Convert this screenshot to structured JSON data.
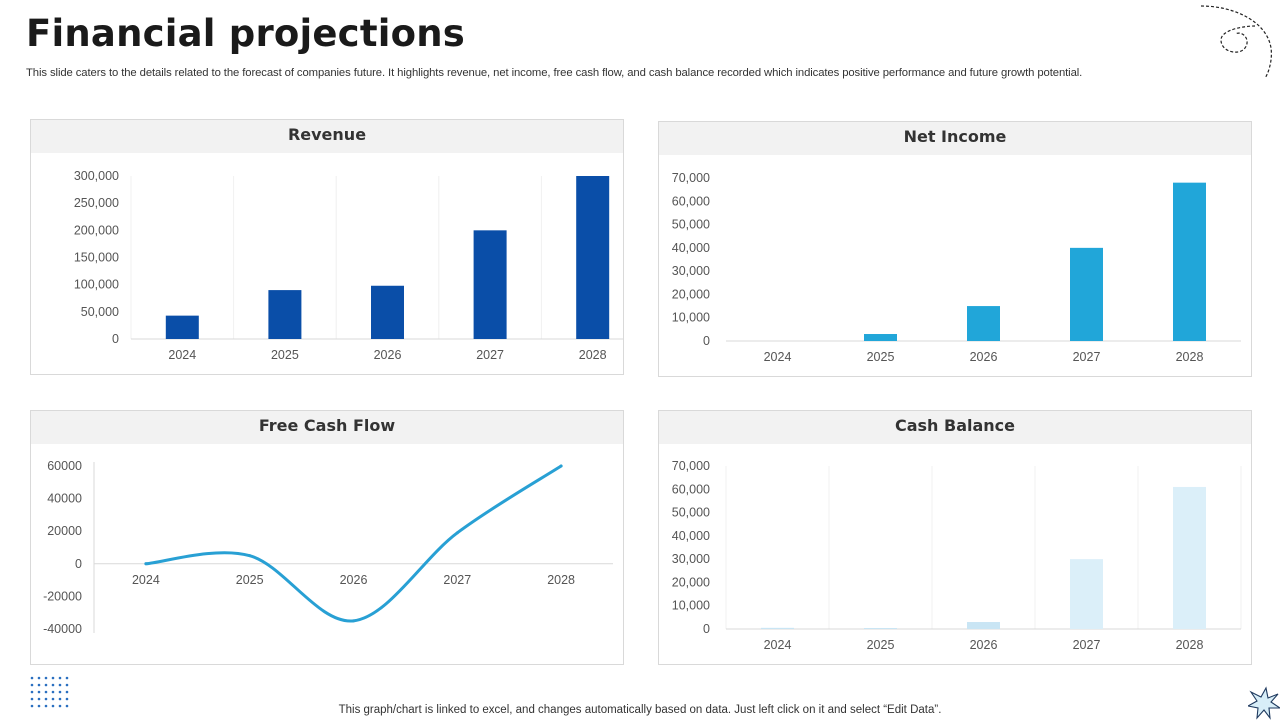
{
  "page": {
    "title": "Financial projections",
    "subtitle": "This slide caters to the details related to the forecast of companies future. It highlights revenue, net income, free cash flow,  and cash balance recorded which indicates positive performance and future growth potential.",
    "footer": "This graph/chart is linked to excel,  and changes automatically based on data. Just left click on it and select “Edit Data”."
  },
  "colors": {
    "revenue_bar": "#0a4ea8",
    "net_income_bar": "#21a6d9",
    "fcf_line": "#28a0d4",
    "cash_balance_bar": "#dbeff9",
    "cash_balance_small_bar": "#c9e5f4"
  },
  "chart_data": [
    {
      "id": "revenue",
      "type": "bar",
      "title": "Revenue",
      "categories": [
        "2024",
        "2025",
        "2026",
        "2027",
        "2028"
      ],
      "values": [
        43000,
        90000,
        98000,
        200000,
        300000
      ],
      "ylim": [
        0,
        300000
      ],
      "yticks": [
        0,
        50000,
        100000,
        150000,
        200000,
        250000,
        300000
      ],
      "ytick_labels": [
        "0",
        "50,000",
        "100,000",
        "150,000",
        "200,000",
        "250,000",
        "300,000"
      ],
      "grid": "vertical"
    },
    {
      "id": "net_income",
      "type": "bar",
      "title": "Net Income",
      "categories": [
        "2024",
        "2025",
        "2026",
        "2027",
        "2028"
      ],
      "values": [
        0,
        3000,
        15000,
        40000,
        68000
      ],
      "ylim": [
        0,
        70000
      ],
      "yticks": [
        0,
        10000,
        20000,
        30000,
        40000,
        50000,
        60000,
        70000
      ],
      "ytick_labels": [
        "0",
        "10,000",
        "20,000",
        "30,000",
        "40,000",
        "50,000",
        "60,000",
        "70,000"
      ],
      "grid": "none"
    },
    {
      "id": "free_cash_flow",
      "type": "line",
      "title": "Free Cash Flow",
      "categories": [
        "2024",
        "2025",
        "2026",
        "2027",
        "2028"
      ],
      "values": [
        0,
        5000,
        -35000,
        19000,
        60000
      ],
      "ylim": [
        -40000,
        60000
      ],
      "yticks": [
        -40000,
        -20000,
        0,
        20000,
        40000,
        60000
      ],
      "ytick_labels": [
        "-40000",
        "-20000",
        "0",
        "20000",
        "40000",
        "60000"
      ],
      "smooth": true,
      "grid": "none"
    },
    {
      "id": "cash_balance",
      "type": "bar",
      "title": "Cash Balance",
      "categories": [
        "2024",
        "2025",
        "2026",
        "2027",
        "2028"
      ],
      "values": [
        500,
        300,
        3000,
        30000,
        61000
      ],
      "ylim": [
        0,
        70000
      ],
      "yticks": [
        0,
        10000,
        20000,
        30000,
        40000,
        50000,
        60000,
        70000
      ],
      "ytick_labels": [
        "0",
        "10,000",
        "20,000",
        "30,000",
        "40,000",
        "50,000",
        "60,000",
        "70,000"
      ],
      "grid": "vertical"
    }
  ]
}
